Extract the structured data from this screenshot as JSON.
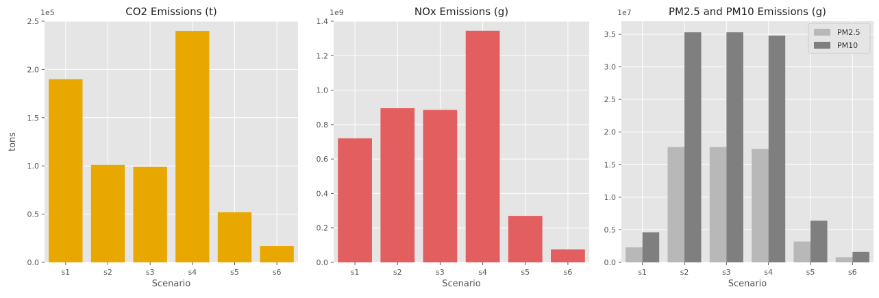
{
  "chart_data": [
    {
      "type": "bar",
      "title": "CO2 Emissions (t)",
      "xlabel": "Scenario",
      "ylabel": "tons",
      "offset_text": "1e5",
      "categories": [
        "s1",
        "s2",
        "s3",
        "s4",
        "s5",
        "s6"
      ],
      "series": [
        {
          "values": [
            1.9,
            1.01,
            0.99,
            2.4,
            0.52,
            0.17
          ],
          "color": "#e8a800"
        }
      ],
      "ylim": [
        0,
        2.5
      ],
      "yticks": [
        "0.0",
        "0.5",
        "1.0",
        "1.5",
        "2.0",
        "2.5"
      ],
      "grid": true,
      "legend": null
    },
    {
      "type": "bar",
      "title": "NOx Emissions (g)",
      "xlabel": "Scenario",
      "ylabel": "",
      "offset_text": "1e9",
      "categories": [
        "s1",
        "s2",
        "s3",
        "s4",
        "s5",
        "s6"
      ],
      "series": [
        {
          "values": [
            0.72,
            0.895,
            0.885,
            1.345,
            0.27,
            0.075
          ],
          "color": "#e35e5e"
        }
      ],
      "ylim": [
        0,
        1.4
      ],
      "yticks": [
        "0.0",
        "0.2",
        "0.4",
        "0.6",
        "0.8",
        "1.0",
        "1.2",
        "1.4"
      ],
      "grid": true,
      "legend": null
    },
    {
      "type": "bar",
      "title": "PM2.5 and PM10 Emissions (g)",
      "xlabel": "Scenario",
      "ylabel": "",
      "offset_text": "1e7",
      "categories": [
        "s1",
        "s2",
        "s3",
        "s4",
        "s5",
        "s6"
      ],
      "series": [
        {
          "name": "PM2.5",
          "values": [
            0.23,
            1.77,
            1.77,
            1.74,
            0.32,
            0.08
          ],
          "color": "#b8b8b8"
        },
        {
          "name": "PM10",
          "values": [
            0.46,
            3.53,
            3.53,
            3.48,
            0.64,
            0.16
          ],
          "color": "#7f7f7f"
        }
      ],
      "ylim": [
        0,
        3.7
      ],
      "yticks": [
        "0.0",
        "0.5",
        "1.0",
        "1.5",
        "2.0",
        "2.5",
        "3.0",
        "3.5"
      ],
      "grid": true,
      "legend": "top-right"
    }
  ]
}
